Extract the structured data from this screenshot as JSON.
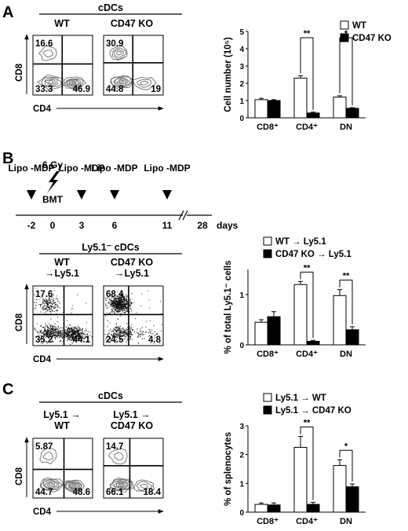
{
  "panels": [
    {
      "label": "A",
      "header": "cDCs",
      "plots": [
        {
          "title": [
            "WT"
          ],
          "style": "contour",
          "seed": 11,
          "quadrants": {
            "ul": "16.6",
            "ll": "33.3",
            "lr": "46.9"
          }
        },
        {
          "title": [
            "CD47 KO"
          ],
          "style": "contour",
          "seed": 12,
          "quadrants": {
            "ul": "30.9",
            "ll": "44.8",
            "lr": "19"
          }
        }
      ],
      "chart": {
        "type": "bar",
        "ylabel": "Cell number (10⁵)",
        "ylim": [
          0,
          5
        ],
        "yticks": [
          "0",
          "1",
          "2",
          "3",
          "4",
          "5"
        ],
        "categories": [
          "CD8⁺",
          "CD4⁺",
          "DN"
        ],
        "legend": [
          "WT",
          "CD47 KO"
        ],
        "series": [
          {
            "name": "WT",
            "values": [
              1.05,
              2.3,
              1.2
            ],
            "errors": [
              0.08,
              0.13,
              0.08
            ],
            "color": "#ffffff"
          },
          {
            "name": "CD47 KO",
            "values": [
              1.0,
              0.28,
              0.55
            ],
            "errors": [
              0.05,
              0.05,
              0.04
            ],
            "color": "#000000"
          }
        ],
        "significance": [
          "",
          "**",
          "*"
        ]
      }
    },
    {
      "label": "B",
      "timeline": {
        "ticks": [
          "-2",
          "0",
          "3",
          "6",
          "11",
          "28"
        ],
        "unit": "days",
        "treatments": [
          "Lipo -MDP",
          "Lipo -MDP",
          "Lipo -MDP",
          "Lipo -MDP"
        ],
        "irradiation": "6 Gy",
        "transplant": "BMT"
      },
      "header": "Ly5.1⁻ cDCs",
      "plots": [
        {
          "title": [
            "WT",
            "→Ly5.1"
          ],
          "style": "dots",
          "seed": 21,
          "quadrants": {
            "ul": "17.6",
            "ll": "35.2",
            "lr": "44.1"
          }
        },
        {
          "title": [
            "CD47 KO",
            "→Ly5.1"
          ],
          "style": "dots",
          "seed": 22,
          "quadrants": {
            "ul": "68.4",
            "ll": "24.5",
            "lr": "4.8"
          }
        }
      ],
      "chart": {
        "type": "bar",
        "ylabel": "% of total Ly5.1⁻ cells",
        "ylim": [
          0,
          1.5
        ],
        "yticks": [
          "0",
          "1"
        ],
        "categories": [
          "CD8⁺",
          "CD4⁺",
          "DN"
        ],
        "legend": [
          "WT → Ly5.1",
          "CD47 KO → Ly5.1"
        ],
        "series": [
          {
            "name": "WT → Ly5.1",
            "values": [
              0.45,
              1.2,
              0.98
            ],
            "errors": [
              0.05,
              0.06,
              0.12
            ],
            "color": "#ffffff"
          },
          {
            "name": "CD47 KO → Ly5.1",
            "values": [
              0.56,
              0.07,
              0.3
            ],
            "errors": [
              0.1,
              0.02,
              0.06
            ],
            "color": "#000000"
          }
        ],
        "significance": [
          "",
          "**",
          "**"
        ]
      }
    },
    {
      "label": "C",
      "header": "cDCs",
      "plots": [
        {
          "title": [
            "Ly5.1 →",
            "WT"
          ],
          "style": "contour",
          "seed": 31,
          "quadrants": {
            "ul": "5.87",
            "ll": "44.7",
            "lr": "48.6"
          }
        },
        {
          "title": [
            "Ly5.1 →",
            "CD47 KO"
          ],
          "style": "contour",
          "seed": 32,
          "quadrants": {
            "ul": "14.7",
            "ll": "66.1",
            "lr": "18.4"
          }
        }
      ],
      "chart": {
        "type": "bar",
        "ylabel": "% of splenocytes",
        "ylim": [
          0,
          3
        ],
        "yticks": [
          "0",
          "1",
          "2",
          "3"
        ],
        "categories": [
          "CD8⁺",
          "CD4⁺",
          "DN"
        ],
        "legend": [
          "Ly5.1 → WT",
          "Ly5.1 → CD47 KO"
        ],
        "series": [
          {
            "name": "Ly5.1 → WT",
            "values": [
              0.27,
              2.25,
              1.62
            ],
            "errors": [
              0.05,
              0.38,
              0.2
            ],
            "color": "#ffffff"
          },
          {
            "name": "Ly5.1 → CD47 KO",
            "values": [
              0.25,
              0.27,
              0.88
            ],
            "errors": [
              0.07,
              0.07,
              0.1
            ],
            "color": "#000000"
          }
        ],
        "significance": [
          "",
          "**",
          "*"
        ]
      }
    }
  ],
  "axes": {
    "x": "CD4",
    "y": "CD8"
  }
}
